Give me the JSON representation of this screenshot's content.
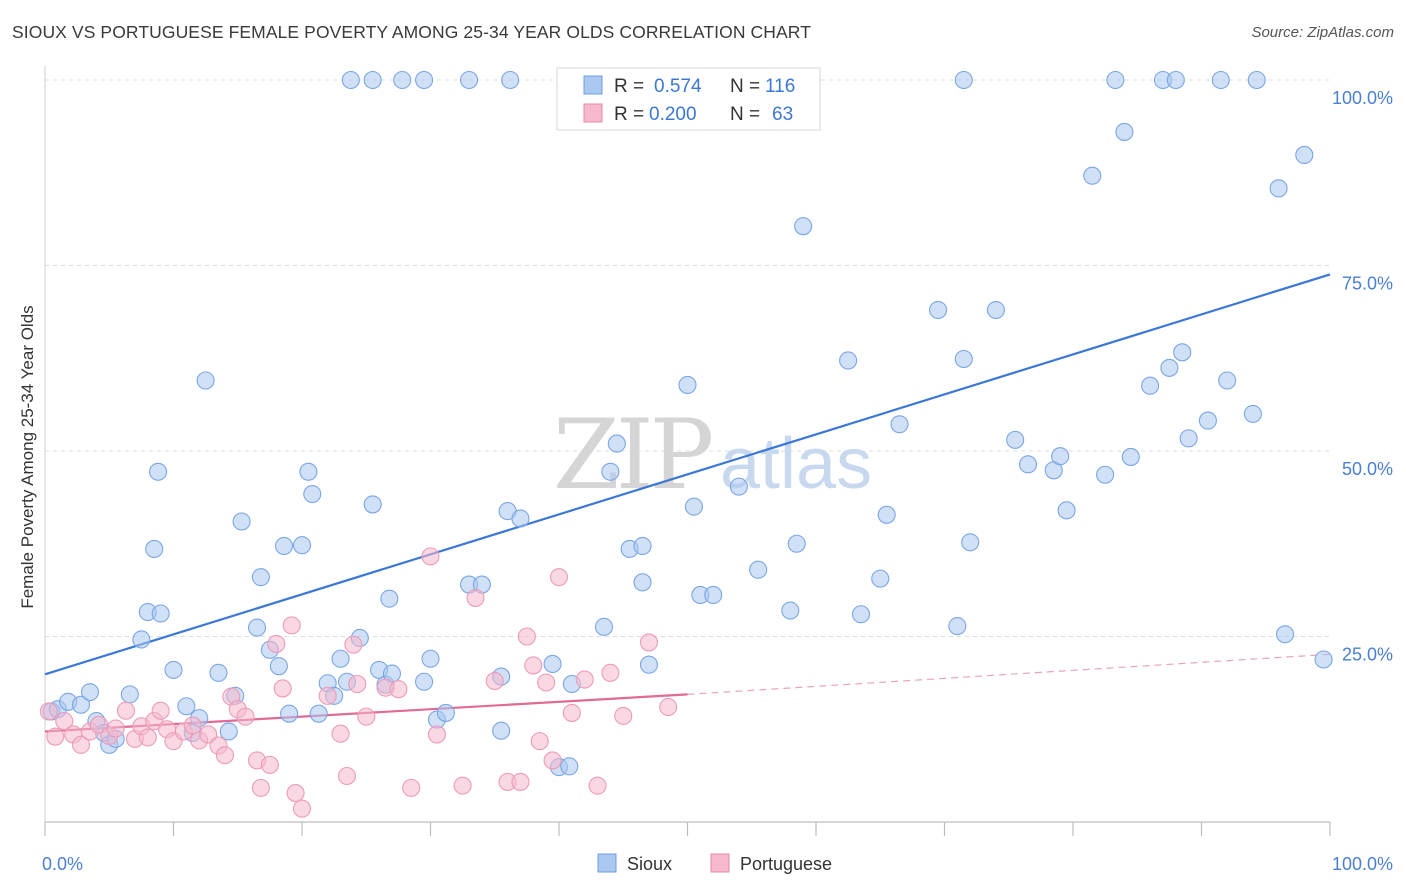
{
  "title": "SIOUX VS PORTUGUESE FEMALE POVERTY AMONG 25-34 YEAR OLDS CORRELATION CHART",
  "source": "Source: ZipAtlas.com",
  "watermark": {
    "zip": "ZIP",
    "atlas": "atlas"
  },
  "colors": {
    "sioux": "#3b78d6",
    "sioux_fill": "#aac8f0",
    "portuguese": "#e06a96",
    "portuguese_fill": "#f6b8cc"
  },
  "stats": [
    {
      "r_label": "R =",
      "r": "0.574",
      "n_label": "N =",
      "n": "116"
    },
    {
      "r_label": "R =",
      "r": "0.200",
      "n_label": "N =",
      "n": "63"
    }
  ],
  "chart_data": {
    "type": "scatter",
    "title": "SIOUX VS PORTUGUESE FEMALE POVERTY AMONG 25-34 YEAR OLDS CORRELATION CHART",
    "xlabel": "",
    "ylabel": "Female Poverty Among 25-34 Year Olds",
    "xlim": [
      0,
      100
    ],
    "ylim": [
      0,
      100
    ],
    "x_tick_labels": [
      "0.0%",
      "100.0%"
    ],
    "y_tick_labels": [
      {
        "value": 25,
        "label": "25.0%"
      },
      {
        "value": 50,
        "label": "50.0%"
      },
      {
        "value": 75,
        "label": "75.0%"
      },
      {
        "value": 100,
        "label": "100.0%"
      }
    ],
    "grid": true,
    "legend": [
      "Sioux",
      "Portuguese"
    ],
    "series": [
      {
        "name": "Sioux",
        "color": "#3b78d6",
        "r": 0.574,
        "n": 116,
        "trend": {
          "x": [
            0,
            100
          ],
          "y": [
            19.9,
            73.8
          ]
        },
        "points": [
          [
            0.5,
            14.9
          ],
          [
            1.0,
            15.2
          ],
          [
            1.8,
            16.2
          ],
          [
            2.8,
            15.8
          ],
          [
            3.5,
            17.5
          ],
          [
            4.0,
            13.6
          ],
          [
            4.6,
            12.0
          ],
          [
            5.0,
            10.4
          ],
          [
            5.5,
            11.2
          ],
          [
            6.6,
            17.2
          ],
          [
            7.5,
            24.6
          ],
          [
            8.0,
            28.3
          ],
          [
            8.5,
            36.8
          ],
          [
            8.8,
            47.2
          ],
          [
            9.0,
            28.1
          ],
          [
            10.0,
            20.5
          ],
          [
            11.0,
            15.6
          ],
          [
            11.5,
            12.0
          ],
          [
            12.0,
            14.0
          ],
          [
            12.5,
            59.5
          ],
          [
            13.5,
            20.1
          ],
          [
            14.3,
            12.2
          ],
          [
            14.8,
            17.0
          ],
          [
            15.3,
            40.5
          ],
          [
            16.5,
            26.2
          ],
          [
            16.8,
            33.0
          ],
          [
            17.5,
            23.2
          ],
          [
            18.2,
            21.0
          ],
          [
            18.6,
            37.2
          ],
          [
            19.0,
            14.6
          ],
          [
            20.0,
            37.3
          ],
          [
            20.5,
            47.2
          ],
          [
            20.8,
            44.2
          ],
          [
            21.3,
            14.6
          ],
          [
            22.0,
            18.7
          ],
          [
            22.5,
            17.0
          ],
          [
            23.0,
            22.0
          ],
          [
            23.5,
            18.9
          ],
          [
            24.5,
            24.8
          ],
          [
            25.5,
            42.8
          ],
          [
            26.0,
            20.5
          ],
          [
            26.5,
            18.5
          ],
          [
            26.8,
            30.1
          ],
          [
            27.0,
            20.0
          ],
          [
            29.5,
            18.9
          ],
          [
            30.0,
            22.0
          ],
          [
            30.5,
            13.8
          ],
          [
            31.2,
            14.7
          ],
          [
            33.0,
            32.0
          ],
          [
            34.0,
            32.0
          ],
          [
            35.5,
            12.3
          ],
          [
            35.5,
            19.6
          ],
          [
            36.0,
            41.9
          ],
          [
            37.0,
            40.9
          ],
          [
            39.5,
            21.3
          ],
          [
            40.0,
            7.4
          ],
          [
            40.8,
            7.5
          ],
          [
            41.0,
            18.6
          ],
          [
            43.5,
            26.3
          ],
          [
            44.0,
            47.2
          ],
          [
            44.5,
            51.0
          ],
          [
            45.5,
            36.8
          ],
          [
            46.5,
            32.3
          ],
          [
            46.5,
            37.2
          ],
          [
            47.0,
            21.2
          ],
          [
            50.0,
            58.9
          ],
          [
            50.5,
            42.5
          ],
          [
            51.0,
            30.6
          ],
          [
            52.0,
            30.6
          ],
          [
            54.0,
            45.2
          ],
          [
            55.5,
            34.0
          ],
          [
            58.0,
            28.5
          ],
          [
            58.5,
            37.5
          ],
          [
            59.0,
            80.3
          ],
          [
            62.5,
            62.2
          ],
          [
            63.5,
            28.0
          ],
          [
            65.0,
            32.8
          ],
          [
            65.5,
            41.4
          ],
          [
            66.5,
            53.6
          ],
          [
            69.5,
            69.0
          ],
          [
            71.0,
            26.4
          ],
          [
            71.5,
            62.4
          ],
          [
            72.0,
            37.7
          ],
          [
            74.0,
            69.0
          ],
          [
            75.5,
            51.5
          ],
          [
            76.5,
            48.2
          ],
          [
            78.5,
            47.4
          ],
          [
            79.0,
            49.3
          ],
          [
            79.5,
            42.0
          ],
          [
            81.5,
            87.1
          ],
          [
            82.5,
            46.8
          ],
          [
            84.5,
            49.2
          ],
          [
            84.0,
            93.0
          ],
          [
            86.0,
            58.8
          ],
          [
            87.5,
            61.2
          ],
          [
            88.5,
            63.3
          ],
          [
            89.0,
            51.7
          ],
          [
            90.5,
            54.1
          ],
          [
            92.0,
            59.5
          ],
          [
            94.0,
            55.0
          ],
          [
            96.0,
            85.4
          ],
          [
            96.5,
            25.3
          ],
          [
            98.0,
            89.9
          ],
          [
            99.5,
            21.9
          ],
          [
            23.8,
            100
          ],
          [
            25.5,
            100
          ],
          [
            27.8,
            100
          ],
          [
            29.5,
            100
          ],
          [
            33.0,
            100
          ],
          [
            36.2,
            100
          ],
          [
            46.5,
            100
          ],
          [
            47.8,
            100
          ],
          [
            71.5,
            100
          ],
          [
            83.3,
            100
          ],
          [
            87.0,
            100
          ],
          [
            88.0,
            100
          ],
          [
            91.5,
            100
          ],
          [
            94.3,
            100
          ]
        ]
      },
      {
        "name": "Portuguese",
        "color": "#e06a96",
        "r": 0.2,
        "n": 63,
        "trend": {
          "x": [
            0,
            50
          ],
          "y": [
            12.2,
            17.2
          ]
        },
        "trend_dashed": {
          "x": [
            50,
            100
          ],
          "y": [
            17.2,
            22.6
          ]
        },
        "points": [
          [
            0.3,
            14.9
          ],
          [
            0.8,
            11.5
          ],
          [
            1.5,
            13.6
          ],
          [
            2.2,
            11.8
          ],
          [
            2.8,
            10.4
          ],
          [
            3.5,
            12.2
          ],
          [
            4.2,
            13.1
          ],
          [
            5.0,
            11.6
          ],
          [
            5.5,
            12.6
          ],
          [
            6.3,
            15.0
          ],
          [
            7.0,
            11.2
          ],
          [
            7.5,
            12.9
          ],
          [
            8.0,
            11.4
          ],
          [
            8.5,
            13.6
          ],
          [
            9.0,
            15.0
          ],
          [
            9.5,
            12.5
          ],
          [
            10.0,
            10.9
          ],
          [
            10.8,
            12.2
          ],
          [
            11.5,
            13.0
          ],
          [
            12.0,
            11.0
          ],
          [
            12.7,
            11.8
          ],
          [
            13.5,
            10.3
          ],
          [
            14.0,
            9.0
          ],
          [
            14.5,
            16.9
          ],
          [
            15.0,
            15.2
          ],
          [
            15.6,
            14.2
          ],
          [
            16.5,
            8.3
          ],
          [
            16.8,
            4.6
          ],
          [
            17.5,
            7.7
          ],
          [
            18.0,
            24.0
          ],
          [
            18.5,
            18.0
          ],
          [
            19.2,
            26.5
          ],
          [
            19.5,
            3.9
          ],
          [
            20.0,
            1.8
          ],
          [
            22.0,
            17.0
          ],
          [
            23.0,
            11.9
          ],
          [
            23.5,
            6.2
          ],
          [
            24.0,
            23.9
          ],
          [
            24.3,
            18.6
          ],
          [
            25.0,
            14.2
          ],
          [
            26.5,
            18.1
          ],
          [
            27.5,
            17.9
          ],
          [
            28.5,
            4.6
          ],
          [
            30.0,
            35.8
          ],
          [
            30.5,
            11.8
          ],
          [
            32.5,
            4.9
          ],
          [
            33.5,
            30.2
          ],
          [
            35.0,
            19.0
          ],
          [
            36.0,
            5.4
          ],
          [
            37.0,
            5.4
          ],
          [
            37.5,
            25.0
          ],
          [
            38.0,
            21.1
          ],
          [
            38.5,
            10.9
          ],
          [
            39.0,
            18.8
          ],
          [
            39.5,
            8.3
          ],
          [
            40.0,
            33.0
          ],
          [
            41.0,
            14.7
          ],
          [
            42.0,
            19.2
          ],
          [
            43.0,
            4.9
          ],
          [
            44.0,
            20.1
          ],
          [
            45.0,
            14.3
          ],
          [
            47.0,
            24.2
          ],
          [
            48.5,
            15.5
          ]
        ]
      }
    ]
  },
  "legend_labels": [
    "Sioux",
    "Portuguese"
  ]
}
